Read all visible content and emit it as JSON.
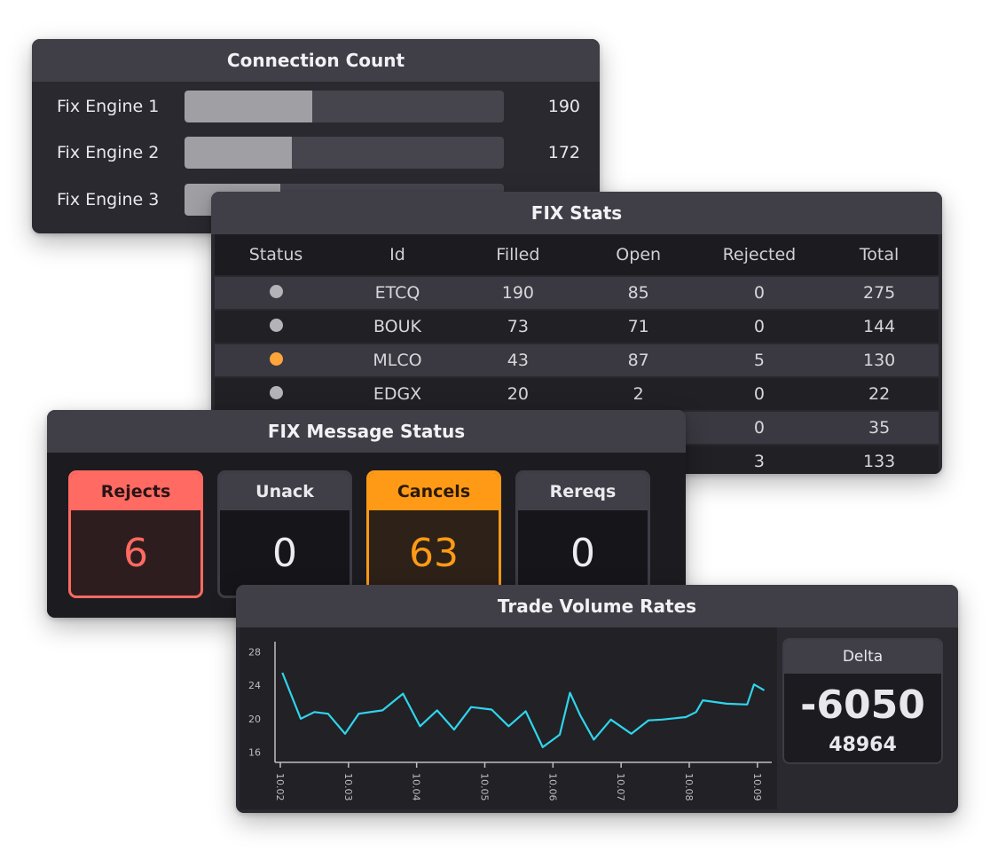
{
  "connection_count": {
    "title": "Connection Count",
    "rows": [
      {
        "label": "Fix Engine 1",
        "value": "190",
        "fill": 0.4
      },
      {
        "label": "Fix Engine 2",
        "value": "172",
        "fill": 0.335
      },
      {
        "label": "Fix Engine 3",
        "value": "",
        "fill": 0.3
      }
    ]
  },
  "fix_stats": {
    "title": "FIX Stats",
    "columns": [
      "Status",
      "Id",
      "Filled",
      "Open",
      "Rejected",
      "Total"
    ],
    "rows": [
      {
        "status": "gray",
        "id": "ETCQ",
        "filled": "190",
        "open": "85",
        "rejected": "0",
        "total": "275"
      },
      {
        "status": "gray",
        "id": "BOUK",
        "filled": "73",
        "open": "71",
        "rejected": "0",
        "total": "144"
      },
      {
        "status": "orange",
        "id": "MLCO",
        "filled": "43",
        "open": "87",
        "rejected": "5",
        "total": "130"
      },
      {
        "status": "gray",
        "id": "EDGX",
        "filled": "20",
        "open": "2",
        "rejected": "0",
        "total": "22"
      },
      {
        "status": "",
        "id": "",
        "filled": "",
        "open": "",
        "rejected": "0",
        "total": "35"
      },
      {
        "status": "",
        "id": "",
        "filled": "",
        "open": "",
        "rejected": "3",
        "total": "133"
      }
    ]
  },
  "fix_message_status": {
    "title": "FIX Message Status",
    "cards": [
      {
        "label": "Rejects",
        "value": "6"
      },
      {
        "label": "Unack",
        "value": "0"
      },
      {
        "label": "Cancels",
        "value": "63"
      },
      {
        "label": "Rereqs",
        "value": "0"
      }
    ]
  },
  "trade_volume": {
    "title": "Trade Volume Rates",
    "delta": {
      "label": "Delta",
      "value": "-6050",
      "sub": "48964"
    }
  },
  "colors": {
    "line": "#2fd5ec",
    "reject": "#ff6a62",
    "cancel": "#ff9a16",
    "status_gray": "#b4b4b8",
    "status_orange": "#ffa53a"
  },
  "chart_data": {
    "type": "line",
    "title": "Trade Volume Rates",
    "xlabel": "",
    "ylabel": "",
    "x_ticks": [
      "10.02",
      "10.03",
      "10.04",
      "10.05",
      "10.06",
      "10.07",
      "10.08",
      "10.09"
    ],
    "y_ticks": [
      "28",
      "24",
      "20",
      "16"
    ],
    "ylim": [
      15,
      29
    ],
    "xlim": [
      0,
      7
    ],
    "grid": false,
    "series": [
      {
        "x": [
          0.03,
          0.3,
          0.5,
          0.7,
          0.95,
          1.15,
          1.5,
          1.8,
          2.05,
          2.3,
          2.55,
          2.8,
          3.1,
          3.35,
          3.6,
          3.85,
          4.1,
          4.25,
          4.4,
          4.6,
          4.85,
          5.15,
          5.4,
          5.6,
          5.95,
          6.1,
          6.2,
          6.55,
          6.85,
          6.95,
          7.1
        ],
        "y": [
          25.5,
          20,
          20.8,
          20.6,
          18.2,
          20.6,
          21,
          23,
          19.1,
          21,
          18.7,
          21.4,
          21.1,
          19.1,
          20.9,
          16.6,
          18.1,
          23.1,
          20.4,
          17.5,
          19.9,
          18.2,
          19.8,
          19.9,
          20.2,
          20.8,
          22.2,
          21.8,
          21.7,
          24.1,
          23.4
        ]
      }
    ]
  }
}
